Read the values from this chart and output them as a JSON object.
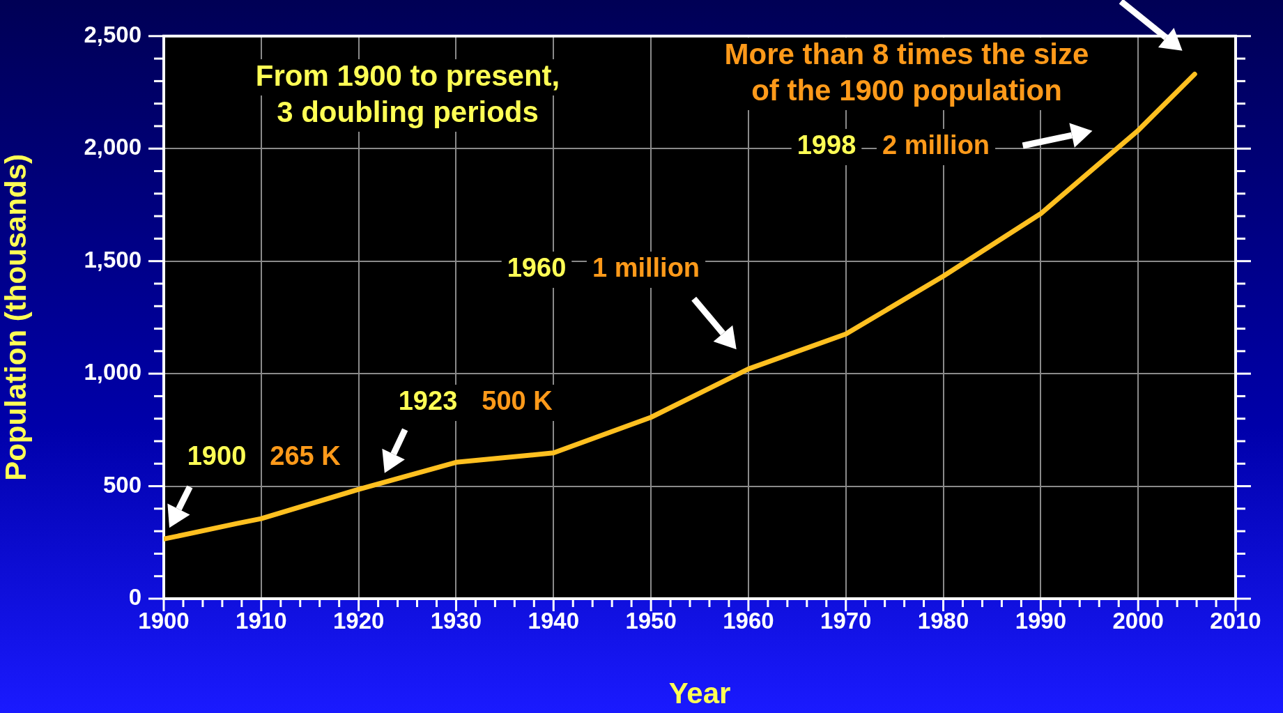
{
  "chart_data": {
    "type": "line",
    "xlabel": "Year",
    "ylabel": "Population (thousands)",
    "x": [
      1900,
      1907.5,
      1910,
      1920,
      1930,
      1940,
      1950,
      1960,
      1970,
      1980,
      1990,
      2000,
      2005.8
    ],
    "values": [
      265,
      334,
      356,
      486,
      606,
      648,
      806,
      1021,
      1176,
      1433,
      1711,
      2081,
      2331
    ],
    "color": "#ffc020",
    "marker": "none",
    "line_style": "solid",
    "xlim": [
      1900,
      2010
    ],
    "xticks": [
      1900,
      1910,
      1920,
      1930,
      1940,
      1950,
      1960,
      1970,
      1980,
      1990,
      2000,
      2010
    ],
    "ylim": [
      0,
      2500
    ],
    "yticks": [
      0,
      {
        "value": 500,
        "label": "500"
      },
      {
        "value": 1000,
        "label": "1,000"
      },
      {
        "value": 1500,
        "label": "1,500"
      },
      {
        "value": 2000,
        "label": "2,000"
      },
      {
        "value": 2500,
        "label": "2,500"
      }
    ],
    "grid": true,
    "legend": false,
    "annotations": [
      "From 1900 to present,\n3 doubling periods",
      "More than 8 times the size\nof the 1900 population",
      "1900",
      "265 K",
      "1923",
      "500 K",
      "1960",
      "1 million",
      "1998",
      "2 million"
    ]
  }
}
